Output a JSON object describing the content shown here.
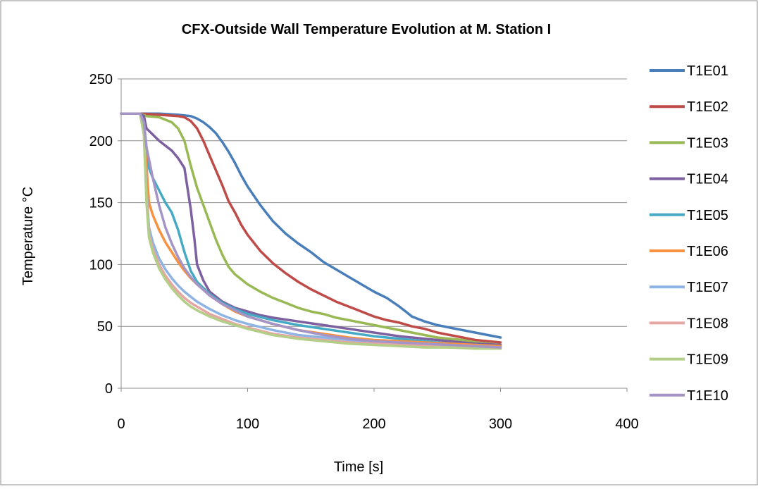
{
  "chart_data": {
    "type": "line",
    "title": "CFX-Outside Wall Temperature Evolution at M. Station I",
    "xlabel": "Time [s]",
    "ylabel": "Temperature °C",
    "xlim": [
      0,
      400
    ],
    "ylim": [
      0,
      250
    ],
    "xticks": [
      0,
      100,
      200,
      300,
      400
    ],
    "yticks": [
      0,
      50,
      100,
      150,
      200,
      250
    ],
    "grid": "horizontal",
    "legend_position": "right",
    "series": [
      {
        "name": "T1E01",
        "color": "#4A7EBB",
        "x": [
          0,
          15,
          30,
          45,
          55,
          60,
          65,
          70,
          75,
          80,
          85,
          90,
          95,
          100,
          110,
          120,
          130,
          140,
          150,
          160,
          170,
          180,
          190,
          200,
          210,
          220,
          225,
          230,
          240,
          250,
          260,
          270,
          280,
          290,
          300
        ],
        "y": [
          222,
          222,
          222,
          221,
          220,
          218,
          215,
          211,
          206,
          199,
          191,
          182,
          172,
          163,
          148,
          135,
          125,
          117,
          110,
          102,
          96,
          90,
          84,
          78,
          73,
          66,
          62,
          58,
          54,
          51,
          49,
          47,
          45,
          43,
          41
        ]
      },
      {
        "name": "T1E02",
        "color": "#BE4B48",
        "x": [
          0,
          15,
          30,
          45,
          50,
          55,
          60,
          65,
          70,
          75,
          80,
          85,
          90,
          95,
          100,
          110,
          120,
          130,
          140,
          150,
          160,
          170,
          180,
          190,
          200,
          210,
          220,
          230,
          240,
          250,
          260,
          270,
          280,
          290,
          300
        ],
        "y": [
          222,
          222,
          221,
          220,
          219,
          216,
          210,
          200,
          188,
          176,
          164,
          151,
          142,
          132,
          124,
          111,
          101,
          93,
          86,
          80,
          75,
          70,
          66,
          62,
          58,
          55,
          53,
          50,
          48,
          45,
          43,
          41,
          39,
          38,
          37
        ]
      },
      {
        "name": "T1E03",
        "color": "#98B954",
        "x": [
          0,
          15,
          20,
          30,
          40,
          45,
          50,
          55,
          60,
          65,
          70,
          75,
          80,
          85,
          90,
          100,
          110,
          120,
          130,
          140,
          150,
          160,
          170,
          180,
          190,
          200,
          210,
          220,
          230,
          240,
          250,
          260,
          270,
          280,
          290,
          300
        ],
        "y": [
          222,
          222,
          220,
          219,
          215,
          210,
          200,
          180,
          162,
          148,
          134,
          120,
          108,
          98,
          92,
          84,
          78,
          73,
          69,
          65,
          62,
          60,
          57,
          55,
          53,
          51,
          49,
          47,
          45,
          43,
          41,
          40,
          39,
          37,
          36,
          35
        ]
      },
      {
        "name": "T1E04",
        "color": "#7D60A0",
        "x": [
          0,
          15,
          18,
          20,
          25,
          30,
          35,
          40,
          45,
          50,
          52,
          55,
          58,
          60,
          65,
          70,
          80,
          90,
          100,
          110,
          120,
          140,
          160,
          180,
          200,
          220,
          240,
          260,
          280,
          300
        ],
        "y": [
          222,
          222,
          220,
          210,
          205,
          200,
          196,
          192,
          186,
          178,
          165,
          145,
          120,
          100,
          87,
          78,
          70,
          65,
          62,
          59,
          57,
          54,
          51,
          48,
          45,
          42,
          40,
          38,
          36,
          35
        ]
      },
      {
        "name": "T1E05",
        "color": "#46AAC5",
        "x": [
          0,
          15,
          18,
          20,
          22,
          25,
          30,
          35,
          40,
          45,
          50,
          55,
          60,
          70,
          80,
          90,
          100,
          120,
          140,
          160,
          180,
          200,
          220,
          240,
          260,
          280,
          300
        ],
        "y": [
          222,
          222,
          215,
          195,
          178,
          170,
          160,
          150,
          142,
          128,
          110,
          95,
          86,
          76,
          69,
          64,
          60,
          55,
          51,
          48,
          45,
          42,
          40,
          38,
          36,
          35,
          34
        ]
      },
      {
        "name": "T1E06",
        "color": "#F69240",
        "x": [
          0,
          15,
          18,
          20,
          22,
          25,
          30,
          35,
          40,
          45,
          50,
          55,
          60,
          70,
          80,
          90,
          100,
          120,
          140,
          160,
          180,
          200,
          220,
          240,
          260,
          280,
          300
        ],
        "y": [
          222,
          222,
          210,
          180,
          150,
          140,
          128,
          118,
          110,
          102,
          95,
          89,
          84,
          75,
          68,
          62,
          58,
          52,
          47,
          44,
          41,
          39,
          38,
          37,
          36,
          35,
          34
        ]
      },
      {
        "name": "T1E07",
        "color": "#8EB4E3",
        "x": [
          0,
          15,
          18,
          20,
          22,
          25,
          30,
          35,
          40,
          45,
          50,
          55,
          60,
          70,
          80,
          90,
          100,
          120,
          140,
          160,
          180,
          200,
          220,
          240,
          260,
          280,
          300
        ],
        "y": [
          222,
          222,
          205,
          160,
          130,
          118,
          105,
          96,
          89,
          83,
          78,
          74,
          70,
          64,
          59,
          55,
          52,
          47,
          43,
          41,
          39,
          37,
          36,
          35,
          34,
          34,
          33
        ]
      },
      {
        "name": "T1E08",
        "color": "#E6A6A4",
        "x": [
          0,
          15,
          18,
          20,
          22,
          25,
          30,
          35,
          40,
          45,
          50,
          55,
          60,
          70,
          80,
          90,
          100,
          120,
          140,
          160,
          180,
          200,
          220,
          240,
          260,
          280,
          300
        ],
        "y": [
          222,
          222,
          205,
          155,
          125,
          113,
          100,
          91,
          84,
          78,
          73,
          69,
          66,
          60,
          56,
          52,
          49,
          44,
          41,
          39,
          37,
          36,
          35,
          34,
          33,
          33,
          32
        ]
      },
      {
        "name": "T1E09",
        "color": "#B3CF87",
        "x": [
          0,
          15,
          18,
          20,
          22,
          25,
          30,
          35,
          40,
          45,
          50,
          55,
          60,
          70,
          80,
          90,
          100,
          120,
          140,
          160,
          180,
          200,
          220,
          240,
          260,
          280,
          300
        ],
        "y": [
          222,
          222,
          205,
          150,
          122,
          110,
          97,
          88,
          81,
          75,
          70,
          66,
          63,
          58,
          54,
          51,
          48,
          43,
          40,
          38,
          36,
          35,
          34,
          33,
          33,
          32,
          32
        ]
      },
      {
        "name": "T1E10",
        "color": "#A594C6",
        "x": [
          0,
          15,
          18,
          20,
          25,
          30,
          35,
          40,
          45,
          50,
          55,
          60,
          70,
          80,
          90,
          100,
          120,
          140,
          160,
          180,
          200,
          220,
          240,
          260,
          280,
          300
        ],
        "y": [
          222,
          222,
          215,
          195,
          170,
          148,
          130,
          117,
          106,
          97,
          90,
          84,
          75,
          68,
          63,
          58,
          52,
          47,
          43,
          40,
          38,
          37,
          36,
          35,
          34,
          33
        ]
      }
    ]
  }
}
